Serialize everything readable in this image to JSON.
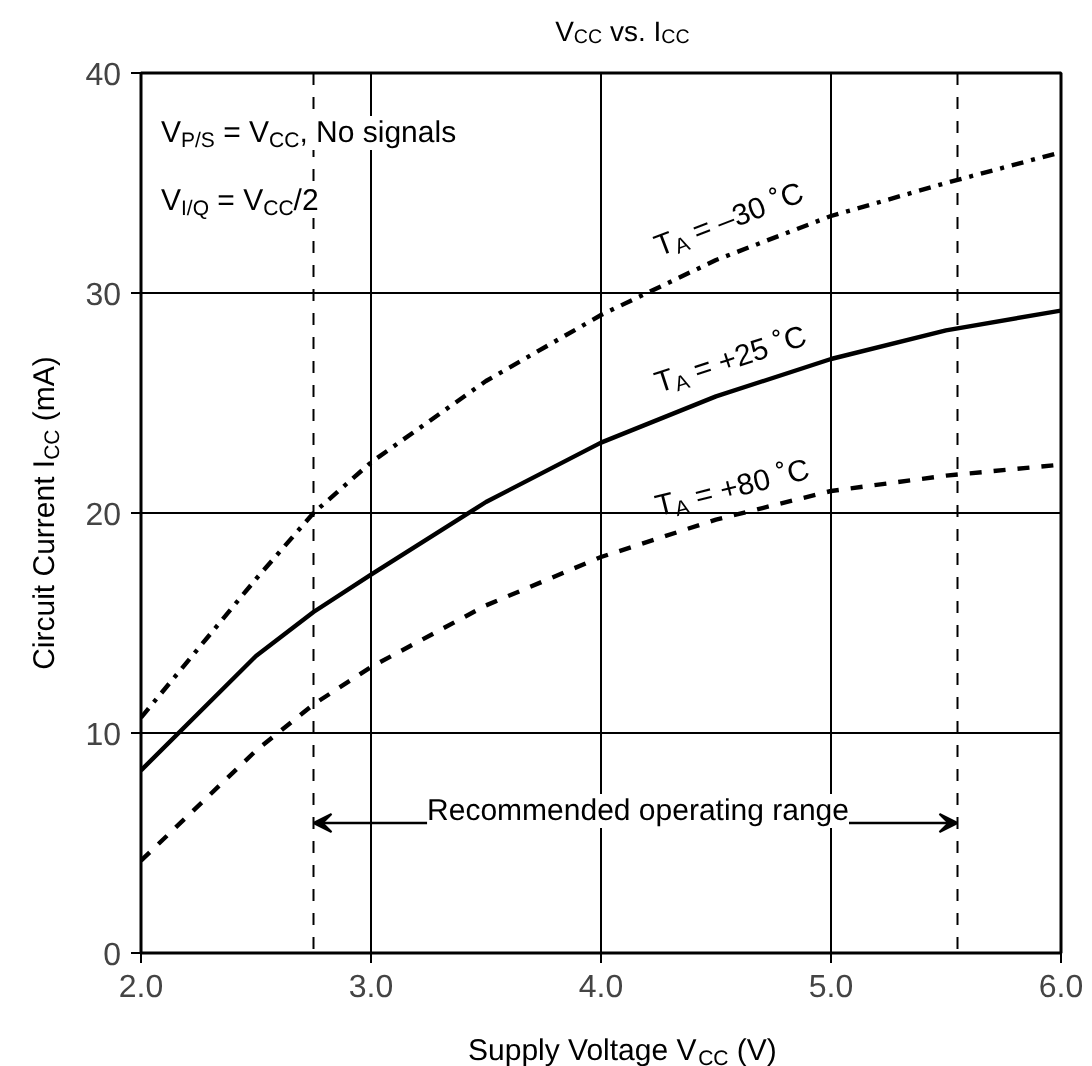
{
  "chart_data": {
    "type": "line",
    "title": "V$_{CC}$ vs. I$_{CC}$",
    "xlabel": "Supply Voltage V$_{CC}$ (V)",
    "ylabel": "Circuit Current I$_{CC}$ (mA)",
    "x": [
      2.0,
      2.5,
      2.75,
      3.0,
      3.5,
      4.0,
      4.5,
      5.0,
      5.5,
      6.0
    ],
    "series": [
      {
        "name": "T$_{A}$ = –30 ˚C",
        "color": "#000000",
        "line_style": "dashdot",
        "values": [
          10.7,
          17.0,
          20.0,
          22.3,
          26.0,
          29.0,
          31.5,
          33.5,
          35.0,
          36.4
        ]
      },
      {
        "name": "T$_{A}$ = +25 ˚C",
        "color": "#000000",
        "line_style": "solid",
        "values": [
          8.3,
          13.5,
          15.5,
          17.2,
          20.5,
          23.2,
          25.3,
          27.0,
          28.3,
          29.2
        ]
      },
      {
        "name": "T$_{A}$ = +80 ˚C",
        "color": "#000000",
        "line_style": "dashed",
        "values": [
          4.2,
          9.2,
          11.3,
          13.0,
          15.8,
          18.0,
          19.7,
          21.0,
          21.7,
          22.2
        ]
      }
    ],
    "xlim": [
      2.0,
      6.0
    ],
    "ylim": [
      0,
      40
    ],
    "xticks": [
      {
        "value": 2,
        "label": "2.0"
      },
      {
        "value": 3,
        "label": "3.0"
      },
      {
        "value": 4,
        "label": "4.0"
      },
      {
        "value": 5,
        "label": "5.0"
      },
      {
        "value": 6,
        "label": "6.0"
      }
    ],
    "yticks": [
      0,
      10,
      20,
      30,
      40
    ],
    "grid": true,
    "marker": "none",
    "ref_lines": [
      {
        "axis": "x",
        "value": 2.75,
        "line_style": "dashed"
      },
      {
        "axis": "x",
        "value": 5.55,
        "line_style": "dashed"
      }
    ],
    "annotations": [
      "V$_{P/S}$ = V$_{CC}$, No signals",
      "V$_{I/Q}$ = V$_{CC}$/2",
      "Recommended operating range"
    ]
  }
}
